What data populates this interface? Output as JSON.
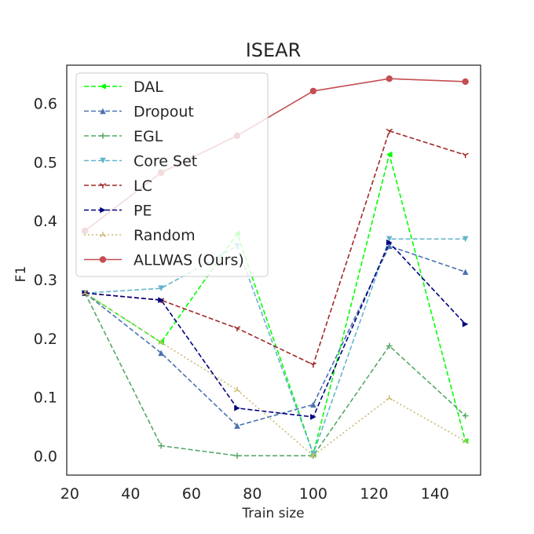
{
  "chart_data": {
    "type": "line",
    "title": "ISEAR",
    "xlabel": "Train size",
    "ylabel": "F1",
    "xlim": [
      19,
      155
    ],
    "ylim": [
      -0.033,
      0.665
    ],
    "xticks": [
      20,
      40,
      60,
      80,
      100,
      120,
      140
    ],
    "xtick_labels": [
      "20",
      "40",
      "60",
      "80",
      "100",
      "120",
      "140"
    ],
    "yticks": [
      0.0,
      0.1,
      0.2,
      0.3,
      0.4,
      0.5,
      0.6
    ],
    "ytick_labels": [
      "0.0",
      "0.1",
      "0.2",
      "0.3",
      "0.4",
      "0.5",
      "0.6"
    ],
    "grid": false,
    "legend_position": "top-left",
    "x": [
      25,
      50,
      75,
      100,
      125,
      150
    ],
    "series": [
      {
        "name": "DAL",
        "color": "#00ff00",
        "dash": "dashed",
        "marker": "triangle-left",
        "values": [
          0.277,
          0.193,
          0.378,
          0.003,
          0.513,
          0.025
        ]
      },
      {
        "name": "Dropout",
        "color": "#4c72b0",
        "dash": "dashed",
        "marker": "triangle-up",
        "values": [
          0.277,
          0.175,
          0.051,
          0.087,
          0.357,
          0.313
        ]
      },
      {
        "name": "EGL",
        "color": "#55a868",
        "dash": "dashed",
        "marker": "plus",
        "values": [
          0.277,
          0.017,
          0.0,
          0.0,
          0.187,
          0.068
        ]
      },
      {
        "name": "Core Set",
        "color": "#64b5cd",
        "dash": "dashed",
        "marker": "triangle-down",
        "values": [
          0.277,
          0.285,
          0.357,
          0.003,
          0.369,
          0.369
        ]
      },
      {
        "name": "LC",
        "color": "#a02828",
        "dash": "dashed",
        "marker": "tri-down",
        "values": [
          0.277,
          0.265,
          0.217,
          0.155,
          0.553,
          0.512
        ]
      },
      {
        "name": "PE",
        "color": "#000080",
        "dash": "dashed",
        "marker": "triangle-right",
        "values": [
          0.277,
          0.265,
          0.081,
          0.066,
          0.363,
          0.224
        ]
      },
      {
        "name": "Random",
        "color": "#ccb974",
        "dash": "dotted",
        "marker": "tri-up",
        "values": [
          0.277,
          0.193,
          0.112,
          0.0,
          0.098,
          0.025
        ]
      },
      {
        "name": "ALLWAS (Ours)",
        "color": "#c44e52",
        "dash": "solid",
        "marker": "circle",
        "values": [
          0.383,
          0.482,
          0.545,
          0.621,
          0.642,
          0.637
        ]
      }
    ]
  }
}
